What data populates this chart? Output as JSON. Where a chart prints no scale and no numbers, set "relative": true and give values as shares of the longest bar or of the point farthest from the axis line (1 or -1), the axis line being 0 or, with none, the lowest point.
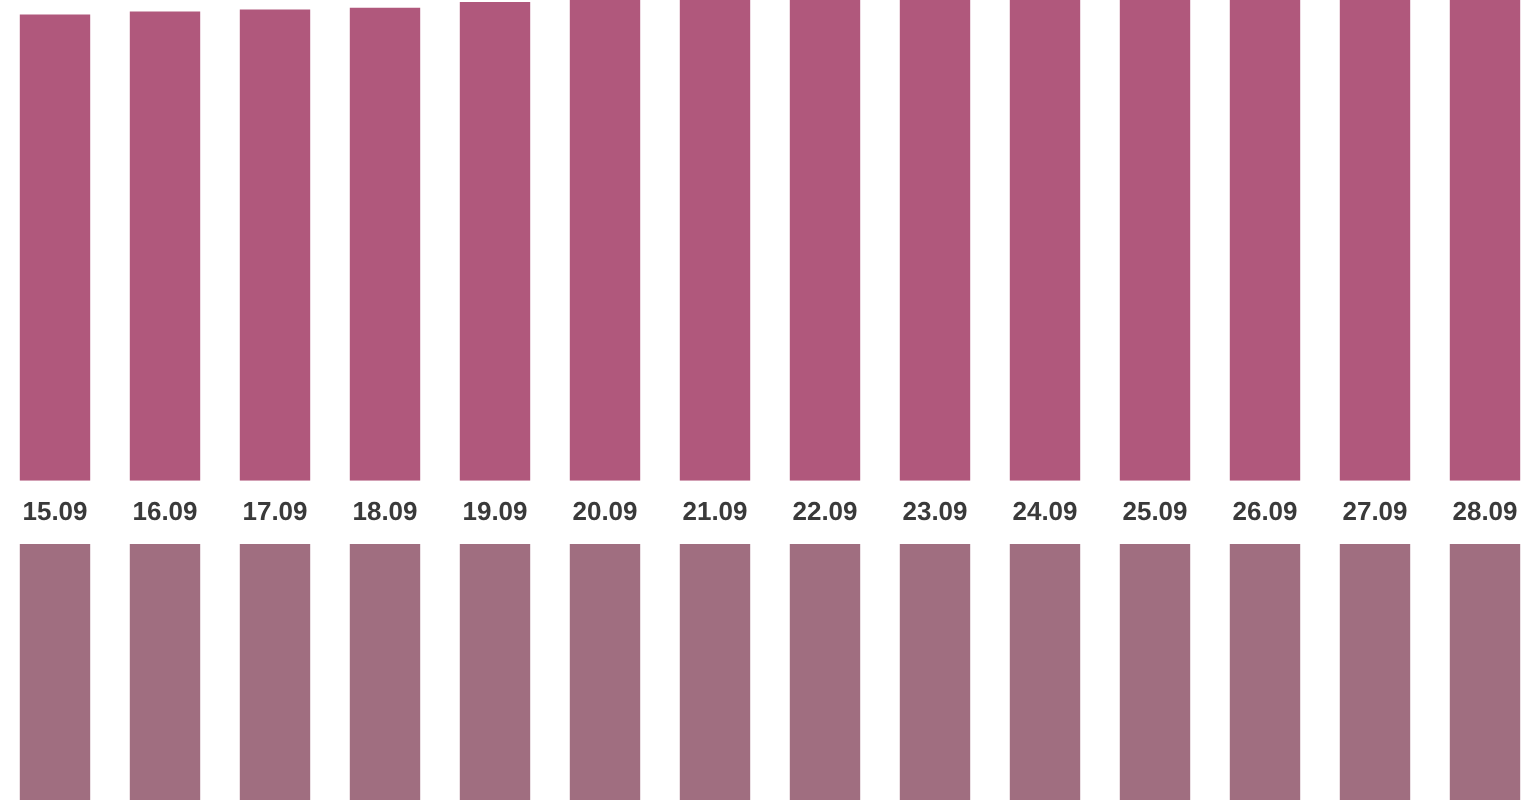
{
  "chart_data": [
    {
      "type": "bar",
      "relative": true,
      "categories": [
        "15.09",
        "16.09",
        "17.09",
        "18.09",
        "19.09",
        "20.09",
        "21.09",
        "22.09",
        "23.09",
        "24.09",
        "25.09",
        "26.09",
        "27.09",
        "28.09"
      ],
      "values": [
        0.97,
        0.976,
        0.98,
        0.984,
        0.996,
        1,
        1,
        1,
        1,
        1,
        1,
        1,
        1,
        1
      ],
      "color": "#b0587c",
      "grid": false,
      "legend": false
    },
    {
      "type": "bar",
      "relative": true,
      "categories": [
        null,
        null,
        null,
        null,
        null,
        null,
        null,
        null,
        null,
        null,
        null,
        null,
        null,
        null
      ],
      "values": [
        -1,
        -1,
        -1,
        -1,
        -1,
        -1,
        -1,
        -1,
        -1,
        -1,
        -1,
        -1,
        -1,
        -1
      ],
      "color": "#a06e80",
      "grid": false,
      "legend": false,
      "tick_labels": false
    }
  ]
}
